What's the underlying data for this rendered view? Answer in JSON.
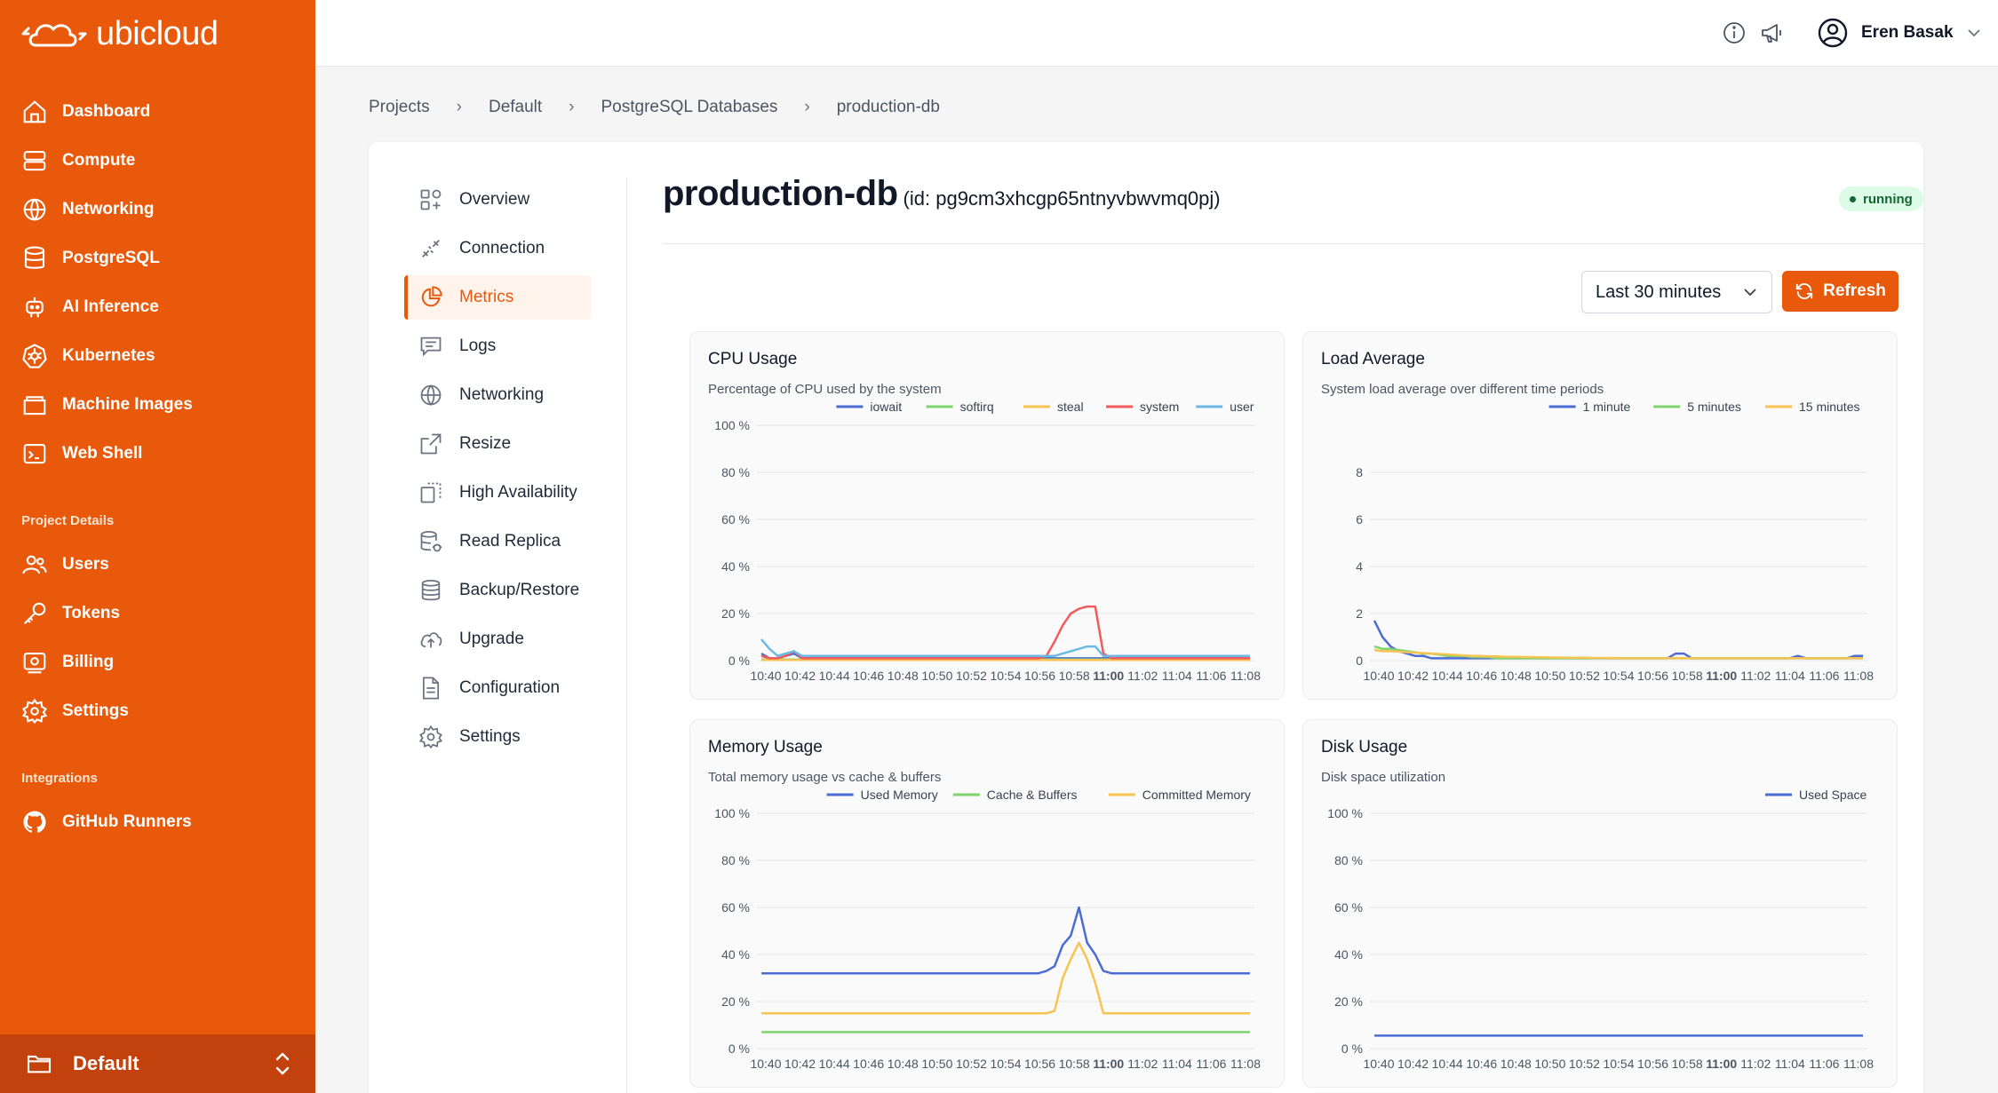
{
  "brand": {
    "name": "ubicloud"
  },
  "sidebar": {
    "items": [
      {
        "label": "Dashboard",
        "icon": "home-icon"
      },
      {
        "label": "Compute",
        "icon": "server-icon"
      },
      {
        "label": "Networking",
        "icon": "globe-icon"
      },
      {
        "label": "PostgreSQL",
        "icon": "database-icon"
      },
      {
        "label": "AI Inference",
        "icon": "robot-icon"
      },
      {
        "label": "Kubernetes",
        "icon": "kubernetes-icon"
      },
      {
        "label": "Machine Images",
        "icon": "image-icon"
      },
      {
        "label": "Web Shell",
        "icon": "terminal-icon"
      }
    ],
    "project_details_label": "Project Details",
    "project_items": [
      {
        "label": "Users",
        "icon": "users-icon"
      },
      {
        "label": "Tokens",
        "icon": "key-icon"
      },
      {
        "label": "Billing",
        "icon": "billing-icon"
      },
      {
        "label": "Settings",
        "icon": "gear-icon"
      }
    ],
    "integrations_label": "Integrations",
    "integration_items": [
      {
        "label": "GitHub Runners",
        "icon": "github-icon"
      }
    ],
    "project_switcher": {
      "label": "Default"
    }
  },
  "header": {
    "user_name": "Eren Basak"
  },
  "breadcrumb": [
    "Projects",
    "Default",
    "PostgreSQL Databases",
    "production-db"
  ],
  "submenu": {
    "items": [
      {
        "label": "Overview",
        "icon": "overview-icon"
      },
      {
        "label": "Connection",
        "icon": "connection-icon"
      },
      {
        "label": "Metrics",
        "icon": "pie-chart-icon",
        "active": true
      },
      {
        "label": "Logs",
        "icon": "logs-icon"
      },
      {
        "label": "Networking",
        "icon": "globe-icon"
      },
      {
        "label": "Resize",
        "icon": "resize-icon"
      },
      {
        "label": "High Availability",
        "icon": "high-availability-icon"
      },
      {
        "label": "Read Replica",
        "icon": "read-replica-icon"
      },
      {
        "label": "Backup/Restore",
        "icon": "backup-icon"
      },
      {
        "label": "Upgrade",
        "icon": "upgrade-icon"
      },
      {
        "label": "Configuration",
        "icon": "configuration-icon"
      },
      {
        "label": "Settings",
        "icon": "gear-icon"
      }
    ]
  },
  "resource": {
    "name": "production-db",
    "id_text": "(id: pg9cm3xhcgp65ntnyvbwvmq0pj)",
    "status": "running"
  },
  "controls": {
    "time_range": "Last 30 minutes",
    "refresh_label": "Refresh"
  },
  "colors": {
    "brand": "#e8590c",
    "blue": "#4a6cd4",
    "green": "#7ed36c",
    "yellow": "#f8c351",
    "red": "#f25b5b",
    "lightblue": "#6cb8e6"
  },
  "chart_data": [
    {
      "type": "line",
      "title": "CPU Usage",
      "subtitle": "Percentage of CPU used by the system",
      "ylim": [
        0,
        100
      ],
      "yticks": [
        "0 %",
        "20 %",
        "40 %",
        "60 %",
        "80 %",
        "100 %"
      ],
      "xticks": [
        "10:40",
        "10:42",
        "10:44",
        "10:46",
        "10:48",
        "10:50",
        "10:52",
        "10:54",
        "10:56",
        "10:58",
        "11:00",
        "11:02",
        "11:04",
        "11:06",
        "11:08"
      ],
      "legend": "top-right",
      "series": [
        {
          "name": "iowait",
          "color": "#4a6cd4",
          "values": [
            3,
            1,
            1,
            2,
            3,
            1,
            1,
            1,
            1,
            1,
            1,
            1,
            1,
            1,
            1,
            1,
            1,
            1,
            1,
            1,
            1,
            1,
            1,
            1,
            1,
            1,
            1,
            1,
            1,
            1,
            1,
            1,
            1,
            1,
            1,
            1,
            1,
            1,
            1,
            1,
            1,
            1,
            1,
            1,
            1,
            1,
            1,
            1,
            1,
            1,
            1,
            1,
            1,
            1,
            1,
            1,
            1,
            1,
            1,
            1,
            1
          ]
        },
        {
          "name": "softirq",
          "color": "#7ed36c",
          "values": [
            0.5,
            0.5,
            0.5,
            0.5,
            0.5,
            0.5,
            0.5,
            0.5,
            0.5,
            0.5,
            0.5,
            0.5,
            0.5,
            0.5,
            0.5,
            0.5,
            0.5,
            0.5,
            0.5,
            0.5,
            0.5,
            0.5,
            0.5,
            0.5,
            0.5,
            0.5,
            0.5,
            0.5,
            0.5,
            0.5,
            0.5,
            0.5,
            0.5,
            0.5,
            0.5,
            0.5,
            0.5,
            0.5,
            0.5,
            0.5,
            0.5,
            0.5,
            0.5,
            0.5,
            0.5,
            0.5,
            0.5,
            0.5,
            0.5,
            0.5,
            0.5,
            0.5,
            0.5,
            0.5,
            0.5,
            0.5,
            0.5,
            0.5,
            0.5,
            0.5,
            0.5
          ]
        },
        {
          "name": "steal",
          "color": "#f8c351",
          "values": [
            0.3,
            0.3,
            0.3,
            0.3,
            0.3,
            0.3,
            0.3,
            0.3,
            0.3,
            0.3,
            0.3,
            0.3,
            0.3,
            0.3,
            0.3,
            0.3,
            0.3,
            0.3,
            0.3,
            0.3,
            0.3,
            0.3,
            0.3,
            0.3,
            0.3,
            0.3,
            0.3,
            0.3,
            0.3,
            0.3,
            0.3,
            0.3,
            0.3,
            0.3,
            0.3,
            0.3,
            0.3,
            0.3,
            0.3,
            0.3,
            0.3,
            0.3,
            0.3,
            0.3,
            0.3,
            0.3,
            0.3,
            0.3,
            0.3,
            0.3,
            0.3,
            0.3,
            0.3,
            0.3,
            0.3,
            0.3,
            0.3,
            0.3,
            0.3,
            0.3,
            0.3
          ]
        },
        {
          "name": "system",
          "color": "#f25b5b",
          "values": [
            2,
            1,
            1,
            2,
            4,
            1,
            1,
            1,
            1,
            1,
            1,
            1,
            1,
            1,
            1,
            1,
            1,
            1,
            1,
            1,
            1,
            1,
            1,
            1,
            1,
            1,
            1,
            1,
            1,
            1,
            1,
            1,
            1,
            1,
            1,
            2,
            8,
            15,
            20,
            22,
            23,
            23,
            3,
            1,
            1,
            1,
            1,
            1,
            1,
            1,
            1,
            1,
            1,
            1,
            1,
            1,
            1,
            1,
            1,
            1,
            1
          ]
        },
        {
          "name": "user",
          "color": "#6cb8e6",
          "values": [
            9,
            5,
            2,
            3,
            4,
            2,
            2,
            2,
            2,
            2,
            2,
            2,
            2,
            2,
            2,
            2,
            2,
            2,
            2,
            2,
            2,
            2,
            2,
            2,
            2,
            2,
            2,
            2,
            2,
            2,
            2,
            2,
            2,
            2,
            2,
            2,
            2,
            3,
            4,
            5,
            6,
            6,
            2,
            2,
            2,
            2,
            2,
            2,
            2,
            2,
            2,
            2,
            2,
            2,
            2,
            2,
            2,
            2,
            2,
            2,
            2
          ]
        }
      ]
    },
    {
      "type": "line",
      "title": "Load Average",
      "subtitle": "System load average over different time periods",
      "ylim": [
        0,
        10
      ],
      "yticks": [
        "0",
        "2",
        "4",
        "6",
        "8"
      ],
      "xticks": [
        "10:40",
        "10:42",
        "10:44",
        "10:46",
        "10:48",
        "10:50",
        "10:52",
        "10:54",
        "10:56",
        "10:58",
        "11:00",
        "11:02",
        "11:04",
        "11:06",
        "11:08"
      ],
      "legend": "top-right",
      "series": [
        {
          "name": "1 minute",
          "color": "#4a6cd4",
          "values": [
            1.7,
            1.0,
            0.6,
            0.4,
            0.3,
            0.2,
            0.2,
            0.1,
            0.1,
            0.1,
            0.1,
            0.1,
            0.1,
            0.1,
            0.1,
            0.1,
            0.1,
            0.1,
            0.1,
            0.1,
            0.1,
            0.1,
            0.1,
            0.1,
            0.1,
            0.1,
            0.1,
            0.1,
            0.1,
            0.1,
            0.1,
            0.1,
            0.1,
            0.1,
            0.1,
            0.1,
            0.1,
            0.3,
            0.3,
            0.1,
            0.1,
            0.1,
            0.1,
            0.1,
            0.1,
            0.1,
            0.1,
            0.1,
            0.1,
            0.1,
            0.1,
            0.1,
            0.2,
            0.1,
            0.1,
            0.1,
            0.1,
            0.1,
            0.1,
            0.2,
            0.2
          ]
        },
        {
          "name": "5 minutes",
          "color": "#7ed36c",
          "values": [
            0.6,
            0.5,
            0.5,
            0.45,
            0.4,
            0.35,
            0.3,
            0.3,
            0.25,
            0.2,
            0.2,
            0.2,
            0.15,
            0.15,
            0.15,
            0.1,
            0.1,
            0.1,
            0.1,
            0.1,
            0.1,
            0.1,
            0.1,
            0.1,
            0.1,
            0.1,
            0.1,
            0.1,
            0.1,
            0.1,
            0.1,
            0.1,
            0.1,
            0.1,
            0.1,
            0.1,
            0.1,
            0.1,
            0.1,
            0.1,
            0.1,
            0.1,
            0.1,
            0.1,
            0.1,
            0.1,
            0.1,
            0.1,
            0.1,
            0.1,
            0.1,
            0.1,
            0.1,
            0.1,
            0.1,
            0.1,
            0.1,
            0.1,
            0.1,
            0.1,
            0.1
          ]
        },
        {
          "name": "15 minutes",
          "color": "#f8c351",
          "values": [
            0.45,
            0.4,
            0.4,
            0.38,
            0.36,
            0.34,
            0.32,
            0.3,
            0.28,
            0.26,
            0.24,
            0.22,
            0.2,
            0.2,
            0.18,
            0.18,
            0.16,
            0.16,
            0.15,
            0.15,
            0.14,
            0.14,
            0.13,
            0.13,
            0.12,
            0.12,
            0.12,
            0.11,
            0.11,
            0.11,
            0.1,
            0.1,
            0.1,
            0.1,
            0.1,
            0.1,
            0.1,
            0.1,
            0.1,
            0.1,
            0.1,
            0.1,
            0.1,
            0.1,
            0.1,
            0.1,
            0.1,
            0.1,
            0.1,
            0.1,
            0.1,
            0.1,
            0.1,
            0.1,
            0.1,
            0.1,
            0.1,
            0.1,
            0.1,
            0.1,
            0.1
          ]
        }
      ]
    },
    {
      "type": "line",
      "title": "Memory Usage",
      "subtitle": "Total memory usage vs cache & buffers",
      "ylim": [
        0,
        100
      ],
      "yticks": [
        "0 %",
        "20 %",
        "40 %",
        "60 %",
        "80 %",
        "100 %"
      ],
      "xticks": [
        "10:40",
        "10:42",
        "10:44",
        "10:46",
        "10:48",
        "10:50",
        "10:52",
        "10:54",
        "10:56",
        "10:58",
        "11:00",
        "11:02",
        "11:04",
        "11:06",
        "11:08"
      ],
      "legend": "top-right",
      "series": [
        {
          "name": "Used Memory",
          "color": "#4a6cd4",
          "values": [
            32,
            32,
            32,
            32,
            32,
            32,
            32,
            32,
            32,
            32,
            32,
            32,
            32,
            32,
            32,
            32,
            32,
            32,
            32,
            32,
            32,
            32,
            32,
            32,
            32,
            32,
            32,
            32,
            32,
            32,
            32,
            32,
            32,
            32,
            32,
            33,
            35,
            44,
            48,
            60,
            45,
            40,
            33,
            32,
            32,
            32,
            32,
            32,
            32,
            32,
            32,
            32,
            32,
            32,
            32,
            32,
            32,
            32,
            32,
            32,
            32
          ]
        },
        {
          "name": "Cache & Buffers",
          "color": "#7ed36c",
          "values": [
            7,
            7,
            7,
            7,
            7,
            7,
            7,
            7,
            7,
            7,
            7,
            7,
            7,
            7,
            7,
            7,
            7,
            7,
            7,
            7,
            7,
            7,
            7,
            7,
            7,
            7,
            7,
            7,
            7,
            7,
            7,
            7,
            7,
            7,
            7,
            7,
            7,
            7,
            7,
            7,
            7,
            7,
            7,
            7,
            7,
            7,
            7,
            7,
            7,
            7,
            7,
            7,
            7,
            7,
            7,
            7,
            7,
            7,
            7,
            7,
            7
          ]
        },
        {
          "name": "Committed Memory",
          "color": "#f8c351",
          "values": [
            15,
            15,
            15,
            15,
            15,
            15,
            15,
            15,
            15,
            15,
            15,
            15,
            15,
            15,
            15,
            15,
            15,
            15,
            15,
            15,
            15,
            15,
            15,
            15,
            15,
            15,
            15,
            15,
            15,
            15,
            15,
            15,
            15,
            15,
            15,
            15,
            16,
            30,
            38,
            45,
            38,
            28,
            15,
            15,
            15,
            15,
            15,
            15,
            15,
            15,
            15,
            15,
            15,
            15,
            15,
            15,
            15,
            15,
            15,
            15,
            15
          ]
        }
      ]
    },
    {
      "type": "line",
      "title": "Disk Usage",
      "subtitle": "Disk space utilization",
      "ylim": [
        0,
        100
      ],
      "yticks": [
        "0 %",
        "20 %",
        "40 %",
        "60 %",
        "80 %",
        "100 %"
      ],
      "xticks": [
        "10:40",
        "10:42",
        "10:44",
        "10:46",
        "10:48",
        "10:50",
        "10:52",
        "10:54",
        "10:56",
        "10:58",
        "11:00",
        "11:02",
        "11:04",
        "11:06",
        "11:08"
      ],
      "legend": "top-right",
      "series": [
        {
          "name": "Used Space",
          "color": "#4a6cd4",
          "values": [
            5.5,
            5.5,
            5.5,
            5.5,
            5.5,
            5.5,
            5.5,
            5.5,
            5.5,
            5.5,
            5.5,
            5.5,
            5.5,
            5.5,
            5.5,
            5.5,
            5.5,
            5.5,
            5.5,
            5.5,
            5.5,
            5.5,
            5.5,
            5.5,
            5.5,
            5.5,
            5.5,
            5.5,
            5.5,
            5.5,
            5.5,
            5.5,
            5.5,
            5.5,
            5.5,
            5.5,
            5.5,
            5.5,
            5.5,
            5.5,
            5.5,
            5.5,
            5.5,
            5.5,
            5.5,
            5.5,
            5.5,
            5.5,
            5.5,
            5.5,
            5.5,
            5.5,
            5.5,
            5.5,
            5.5,
            5.5,
            5.5,
            5.5,
            5.5,
            5.5,
            5.5
          ]
        }
      ]
    }
  ]
}
